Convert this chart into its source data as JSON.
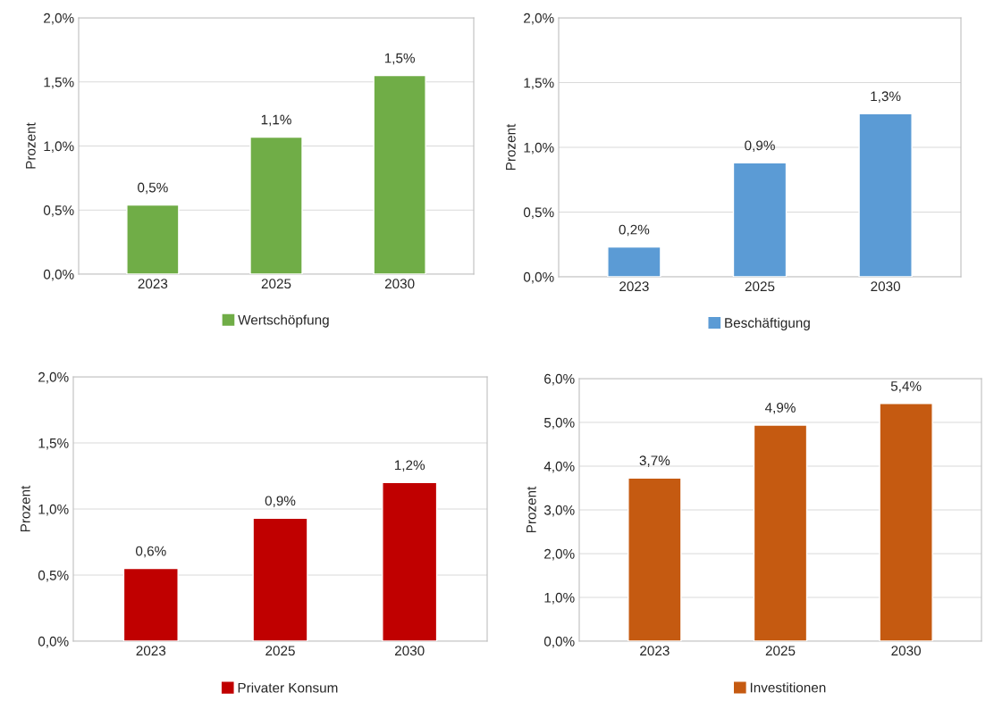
{
  "chart_data": [
    {
      "type": "bar",
      "ylabel": "Prozent",
      "categories": [
        "2023",
        "2025",
        "2030"
      ],
      "ylim": [
        0,
        2
      ],
      "yticks": [
        {
          "value": 0,
          "label": "0,0%"
        },
        {
          "value": 0.5,
          "label": "0,5%"
        },
        {
          "value": 1,
          "label": "1,0%"
        },
        {
          "value": 1.5,
          "label": "1,5%"
        },
        {
          "value": 2,
          "label": "2,0%"
        }
      ],
      "grid": "y",
      "legend": "bottom",
      "series": [
        {
          "name": "Wertschöpfung",
          "color": "#70ad47",
          "values": [
            0.54,
            1.07,
            1.55
          ],
          "value_labels": [
            "0,5%",
            "1,1%",
            "1,5%"
          ]
        }
      ]
    },
    {
      "type": "bar",
      "ylabel": "Prozent",
      "categories": [
        "2023",
        "2025",
        "2030"
      ],
      "ylim": [
        0,
        2
      ],
      "yticks": [
        {
          "value": 0,
          "label": "0,0%"
        },
        {
          "value": 0.5,
          "label": "0,5%"
        },
        {
          "value": 1,
          "label": "1,0%"
        },
        {
          "value": 1.5,
          "label": "1,5%"
        },
        {
          "value": 2,
          "label": "2,0%"
        }
      ],
      "grid": "y",
      "legend": "bottom",
      "series": [
        {
          "name": "Beschäftigung",
          "color": "#5b9bd5",
          "values": [
            0.23,
            0.88,
            1.26
          ],
          "value_labels": [
            "0,2%",
            "0,9%",
            "1,3%"
          ]
        }
      ]
    },
    {
      "type": "bar",
      "ylabel": "Prozent",
      "categories": [
        "2023",
        "2025",
        "2030"
      ],
      "ylim": [
        0,
        2
      ],
      "yticks": [
        {
          "value": 0,
          "label": "0,0%"
        },
        {
          "value": 0.5,
          "label": "0,5%"
        },
        {
          "value": 1,
          "label": "1,0%"
        },
        {
          "value": 1.5,
          "label": "1,5%"
        },
        {
          "value": 2,
          "label": "2,0%"
        }
      ],
      "grid": "y",
      "legend": "bottom",
      "series": [
        {
          "name": "Privater Konsum",
          "color": "#c00000",
          "values": [
            0.55,
            0.93,
            1.2
          ],
          "value_labels": [
            "0,6%",
            "0,9%",
            "1,2%"
          ]
        }
      ]
    },
    {
      "type": "bar",
      "ylabel": "Prozent",
      "categories": [
        "2023",
        "2025",
        "2030"
      ],
      "ylim": [
        0,
        6
      ],
      "yticks": [
        {
          "value": 0,
          "label": "0,0%"
        },
        {
          "value": 1,
          "label": "1,0%"
        },
        {
          "value": 2,
          "label": "2,0%"
        },
        {
          "value": 3,
          "label": "3,0%"
        },
        {
          "value": 4,
          "label": "4,0%"
        },
        {
          "value": 5,
          "label": "5,0%"
        },
        {
          "value": 6,
          "label": "6,0%"
        }
      ],
      "grid": "y",
      "legend": "bottom",
      "series": [
        {
          "name": "Investitionen",
          "color": "#c55a11",
          "values": [
            3.73,
            4.94,
            5.43
          ],
          "value_labels": [
            "3,7%",
            "4,9%",
            "5,4%"
          ]
        }
      ]
    }
  ]
}
